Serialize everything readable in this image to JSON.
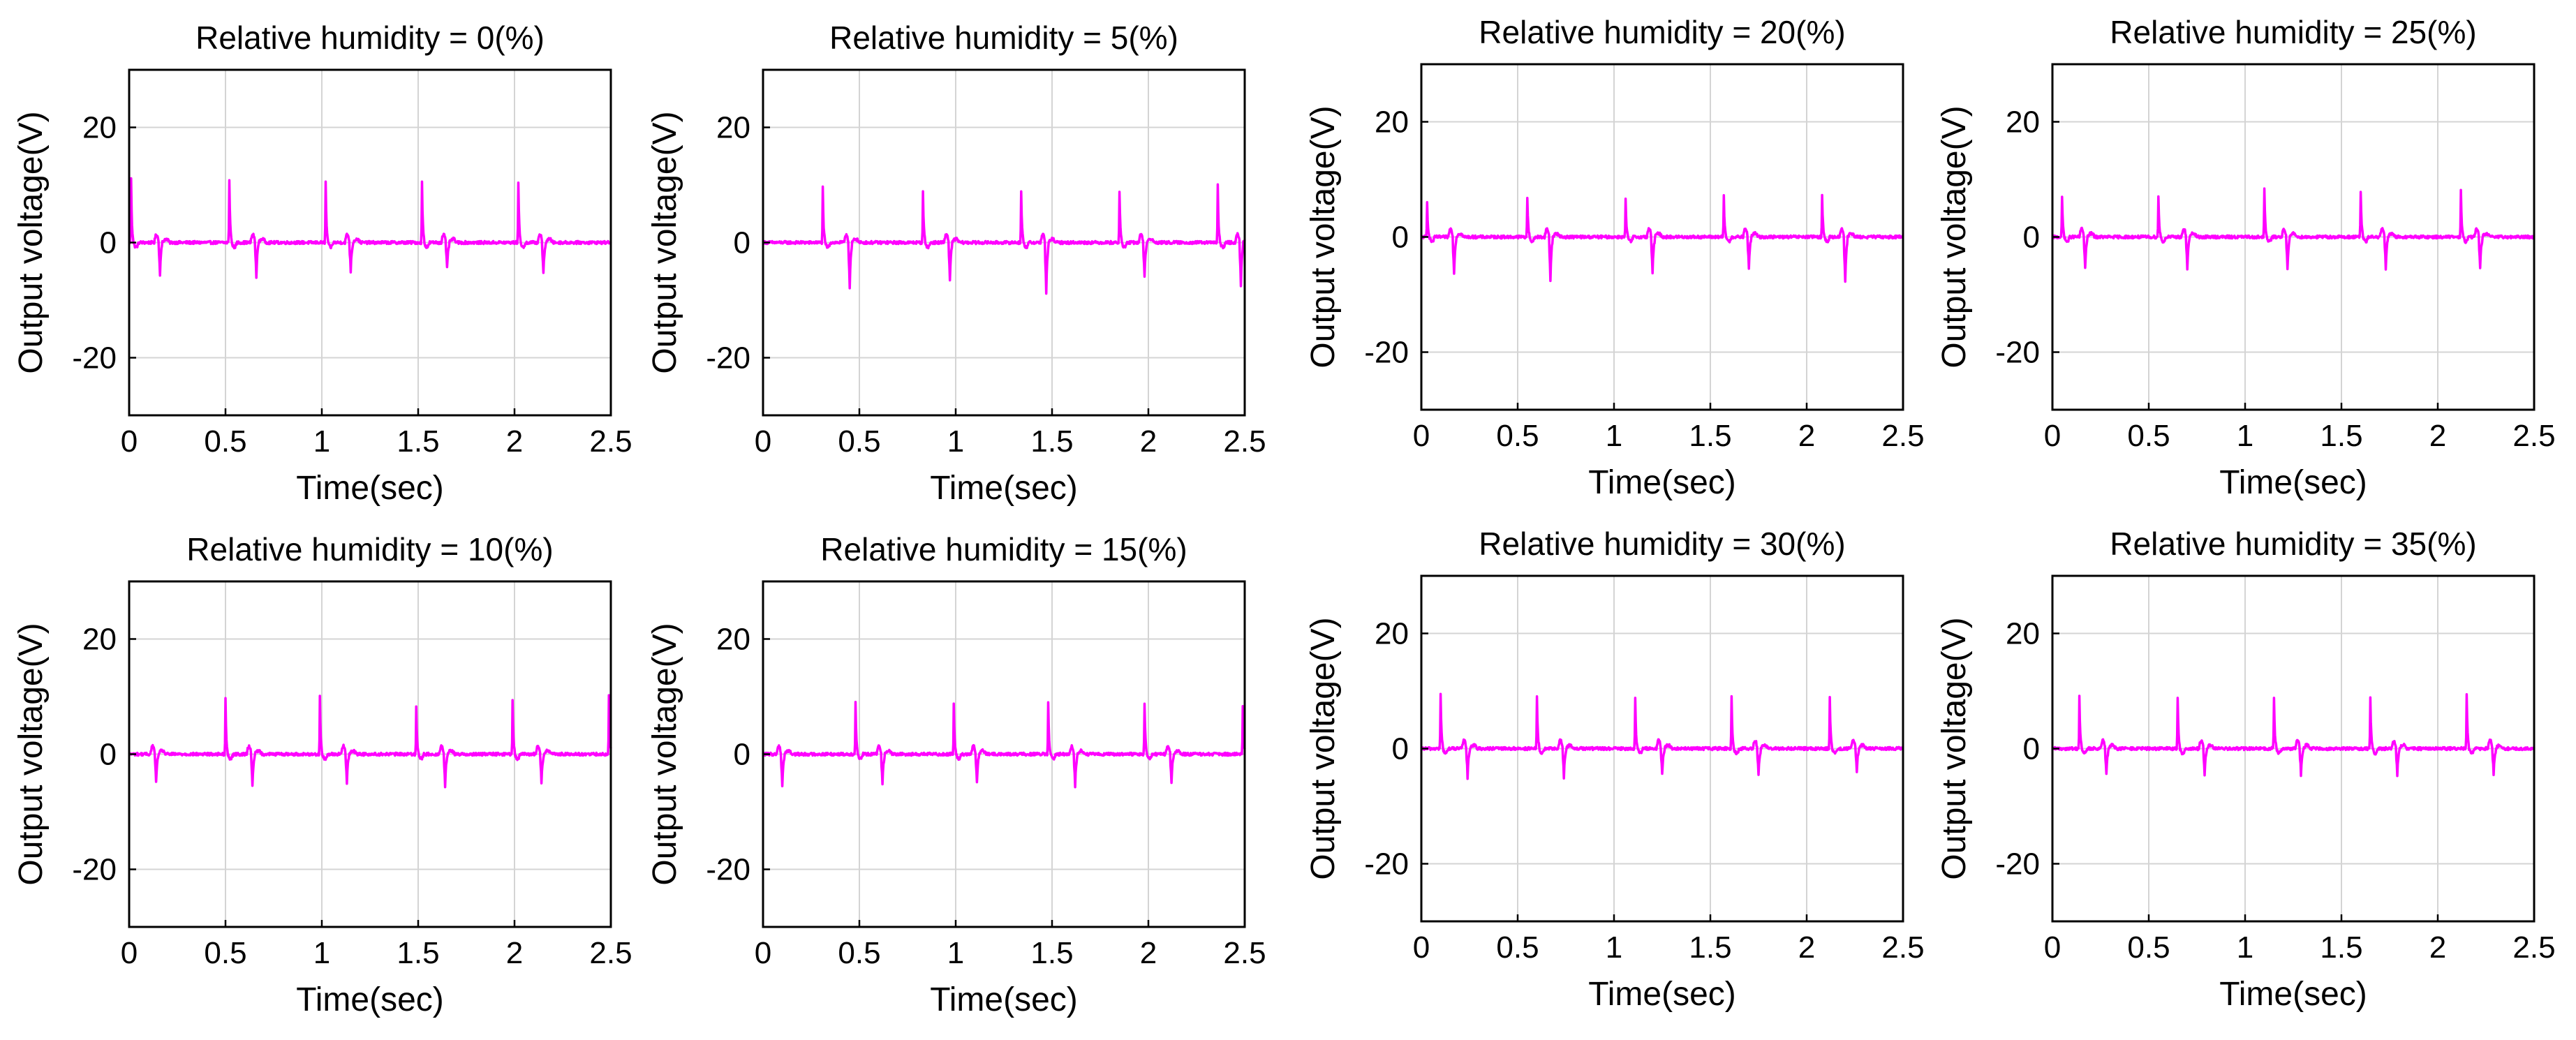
{
  "figure": {
    "series_color": "#ff00ff",
    "shared_axes": {
      "xlabel": "Time(sec)",
      "ylabel": "Output voltage(V)",
      "xlim": [
        0,
        2.5
      ],
      "ylim": [
        -30,
        30
      ],
      "xticks": [
        0,
        0.5,
        1,
        1.5,
        2,
        2.5
      ],
      "xtick_labels": [
        "0",
        "0.5",
        "1",
        "1.5",
        "2",
        "2.5"
      ],
      "yticks": [
        -20,
        0,
        20
      ],
      "ytick_labels": [
        "-20",
        "0",
        "20"
      ],
      "grid": true
    }
  },
  "chart_data": [
    {
      "type": "line",
      "title": "Relative humidity = 0(%)",
      "xlabel": "Time(sec)",
      "ylabel": "Output voltage(V)",
      "xlim": [
        0,
        2.5
      ],
      "ylim": [
        -30,
        30
      ],
      "grid": true,
      "series": [
        {
          "name": "Output voltage",
          "period": 0.5,
          "positive_peaks": [
            {
              "t": 0.01,
              "v": 11
            },
            {
              "t": 0.52,
              "v": 11
            },
            {
              "t": 1.02,
              "v": 10.5
            },
            {
              "t": 1.52,
              "v": 10.5
            },
            {
              "t": 2.02,
              "v": 10.5
            }
          ],
          "negative_peaks": [
            {
              "t": 0.16,
              "v": -5.5
            },
            {
              "t": 0.66,
              "v": -6
            },
            {
              "t": 1.15,
              "v": -5
            },
            {
              "t": 1.65,
              "v": -4.5
            },
            {
              "t": 2.15,
              "v": -5.5
            }
          ]
        }
      ]
    },
    {
      "type": "line",
      "title": "Relative humidity = 5(%)",
      "xlabel": "Time(sec)",
      "ylabel": "Output voltage(V)",
      "xlim": [
        0,
        2.5
      ],
      "ylim": [
        -30,
        30
      ],
      "grid": true,
      "series": [
        {
          "name": "Output voltage",
          "period": 0.5,
          "positive_peaks": [
            {
              "t": 0.31,
              "v": 9.5
            },
            {
              "t": 0.83,
              "v": 9
            },
            {
              "t": 1.34,
              "v": 9
            },
            {
              "t": 1.85,
              "v": 9
            },
            {
              "t": 2.36,
              "v": 10
            }
          ],
          "negative_peaks": [
            {
              "t": 0.45,
              "v": -8
            },
            {
              "t": 0.97,
              "v": -6.5
            },
            {
              "t": 1.47,
              "v": -9
            },
            {
              "t": 1.98,
              "v": -6
            },
            {
              "t": 2.48,
              "v": -7.5
            }
          ]
        }
      ]
    },
    {
      "type": "line",
      "title": "Relative humidity = 20(%)",
      "xlabel": "Time(sec)",
      "ylabel": "Output voltage(V)",
      "xlim": [
        0,
        2.5
      ],
      "ylim": [
        -30,
        30
      ],
      "grid": true,
      "series": [
        {
          "name": "Output voltage",
          "period": 0.5,
          "positive_peaks": [
            {
              "t": 0.03,
              "v": 6
            },
            {
              "t": 0.55,
              "v": 7
            },
            {
              "t": 1.06,
              "v": 6.5
            },
            {
              "t": 1.57,
              "v": 7
            },
            {
              "t": 2.08,
              "v": 7.5
            }
          ],
          "negative_peaks": [
            {
              "t": 0.17,
              "v": -6.5
            },
            {
              "t": 0.67,
              "v": -7.5
            },
            {
              "t": 1.2,
              "v": -6.5
            },
            {
              "t": 1.7,
              "v": -5.5
            },
            {
              "t": 2.2,
              "v": -8
            }
          ]
        }
      ]
    },
    {
      "type": "line",
      "title": "Relative humidity = 25(%)",
      "xlabel": "Time(sec)",
      "ylabel": "Output voltage(V)",
      "xlim": [
        0,
        2.5
      ],
      "ylim": [
        -30,
        30
      ],
      "grid": true,
      "series": [
        {
          "name": "Output voltage",
          "period": 0.5,
          "positive_peaks": [
            {
              "t": 0.05,
              "v": 7
            },
            {
              "t": 0.55,
              "v": 7
            },
            {
              "t": 1.1,
              "v": 8.5
            },
            {
              "t": 1.6,
              "v": 8
            },
            {
              "t": 2.12,
              "v": 8
            }
          ],
          "negative_peaks": [
            {
              "t": 0.17,
              "v": -5.5
            },
            {
              "t": 0.7,
              "v": -5.5
            },
            {
              "t": 1.22,
              "v": -5.5
            },
            {
              "t": 1.73,
              "v": -5.5
            },
            {
              "t": 2.22,
              "v": -5.5
            }
          ]
        }
      ]
    },
    {
      "type": "line",
      "title": "Relative humidity = 10(%)",
      "xlabel": "Time(sec)",
      "ylabel": "Output voltage(V)",
      "xlim": [
        0,
        2.5
      ],
      "ylim": [
        -30,
        30
      ],
      "grid": true,
      "series": [
        {
          "name": "Output voltage",
          "period": 0.5,
          "positive_peaks": [
            {
              "t": 0.5,
              "v": 9.5
            },
            {
              "t": 0.99,
              "v": 10
            },
            {
              "t": 1.49,
              "v": 8.5
            },
            {
              "t": 1.99,
              "v": 9.5
            },
            {
              "t": 2.49,
              "v": 10
            }
          ],
          "negative_peaks": [
            {
              "t": 0.14,
              "v": -5
            },
            {
              "t": 0.64,
              "v": -5.5
            },
            {
              "t": 1.13,
              "v": -5
            },
            {
              "t": 1.64,
              "v": -5.5
            },
            {
              "t": 2.14,
              "v": -5
            }
          ]
        }
      ]
    },
    {
      "type": "line",
      "title": "Relative humidity = 15(%)",
      "xlabel": "Time(sec)",
      "ylabel": "Output voltage(V)",
      "xlim": [
        0,
        2.5
      ],
      "ylim": [
        -30,
        30
      ],
      "grid": true,
      "series": [
        {
          "name": "Output voltage",
          "period": 0.5,
          "positive_peaks": [
            {
              "t": 0.48,
              "v": 9
            },
            {
              "t": 0.99,
              "v": 9
            },
            {
              "t": 1.48,
              "v": 9
            },
            {
              "t": 1.98,
              "v": 9
            },
            {
              "t": 2.49,
              "v": 8.5
            }
          ],
          "negative_peaks": [
            {
              "t": 0.1,
              "v": -5.5
            },
            {
              "t": 0.62,
              "v": -5
            },
            {
              "t": 1.11,
              "v": -5
            },
            {
              "t": 1.62,
              "v": -5.5
            },
            {
              "t": 2.12,
              "v": -5
            }
          ]
        }
      ]
    },
    {
      "type": "line",
      "title": "Relative humidity = 30(%)",
      "xlabel": "Time(sec)",
      "ylabel": "Output voltage(V)",
      "xlim": [
        0,
        2.5
      ],
      "ylim": [
        -30,
        30
      ],
      "grid": true,
      "series": [
        {
          "name": "Output voltage",
          "period": 0.5,
          "positive_peaks": [
            {
              "t": 0.1,
              "v": 9.5
            },
            {
              "t": 0.6,
              "v": 9
            },
            {
              "t": 1.11,
              "v": 9
            },
            {
              "t": 1.61,
              "v": 9
            },
            {
              "t": 2.12,
              "v": 9
            }
          ],
          "negative_peaks": [
            {
              "t": 0.24,
              "v": -5
            },
            {
              "t": 0.74,
              "v": -5
            },
            {
              "t": 1.25,
              "v": -4.5
            },
            {
              "t": 1.75,
              "v": -4.5
            },
            {
              "t": 2.26,
              "v": -4
            }
          ]
        }
      ]
    },
    {
      "type": "line",
      "title": "Relative humidity = 35(%)",
      "xlabel": "Time(sec)",
      "ylabel": "Output voltage(V)",
      "xlim": [
        0,
        2.5
      ],
      "ylim": [
        -30,
        30
      ],
      "grid": true,
      "series": [
        {
          "name": "Output voltage",
          "period": 0.5,
          "positive_peaks": [
            {
              "t": 0.14,
              "v": 9
            },
            {
              "t": 0.65,
              "v": 9
            },
            {
              "t": 1.15,
              "v": 9
            },
            {
              "t": 1.65,
              "v": 9
            },
            {
              "t": 2.15,
              "v": 9.5
            }
          ],
          "negative_peaks": [
            {
              "t": 0.28,
              "v": -4.5
            },
            {
              "t": 0.79,
              "v": -4.5
            },
            {
              "t": 1.29,
              "v": -4.5
            },
            {
              "t": 1.79,
              "v": -4.5
            },
            {
              "t": 2.29,
              "v": -4.5
            }
          ]
        }
      ]
    }
  ]
}
